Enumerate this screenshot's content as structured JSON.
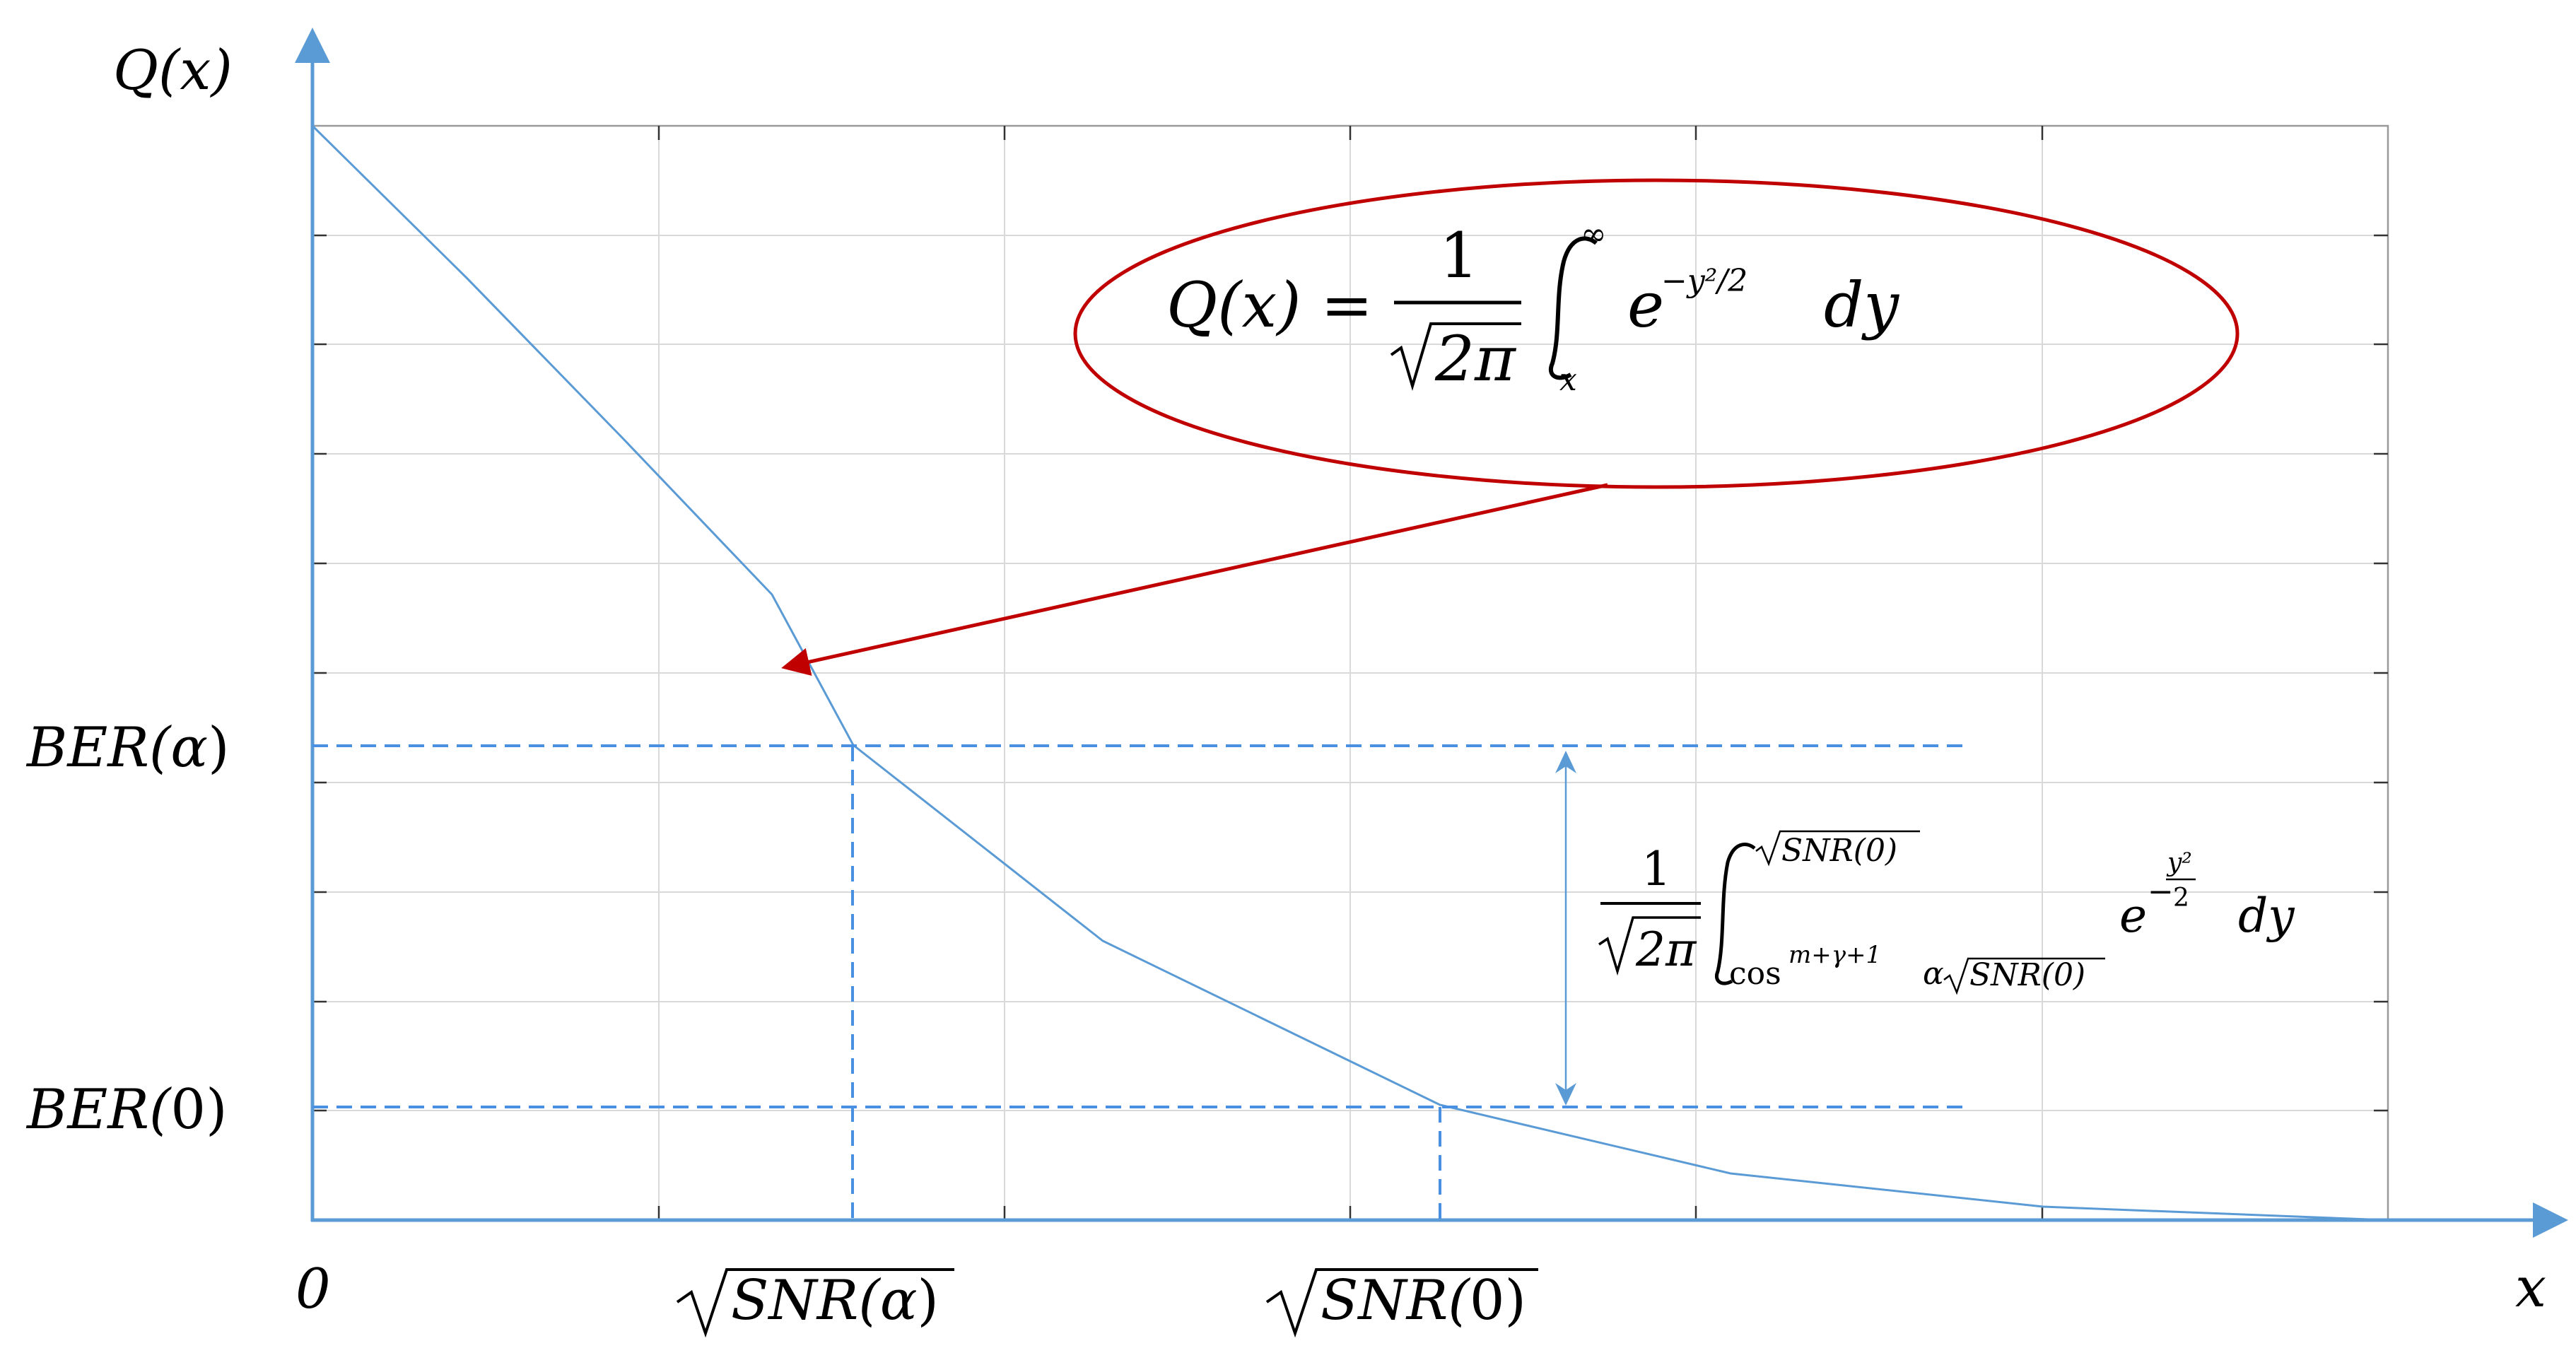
{
  "axes": {
    "y_label": "Q(x)",
    "x_label": "x",
    "origin_label": "0",
    "y_ticks": [
      {
        "label_pre": "BER(",
        "label_arg": "α",
        "label_post": ")"
      },
      {
        "label_pre": "BER(",
        "label_arg": "0",
        "label_post": ")"
      }
    ],
    "x_ticks": [
      {
        "label_pre": "SNR(",
        "label_arg": "α",
        "label_post": ")"
      },
      {
        "label_pre": "SNR(",
        "label_arg": "0",
        "label_post": ")"
      }
    ]
  },
  "formula_q": {
    "lhs": "Q(x) =",
    "numerator": "1",
    "denominator_radicand": "2π",
    "upper_limit": "∞",
    "lower_limit": "x",
    "integrand_base": "e",
    "integrand_exp": "−y²/2",
    "differential": "dy"
  },
  "formula_range": {
    "numerator": "1",
    "denominator_radicand": "2π",
    "upper_limit_radicand": "SNR(0)",
    "lower_limit_cos": "cos",
    "lower_limit_cos_exp": "m+γ+1",
    "lower_limit_alpha": "α",
    "lower_limit_radicand": "SNR(0)",
    "integrand_base": "e",
    "exp_minus": "−",
    "exp_num": "y²",
    "exp_den": "2",
    "differential": "dy"
  },
  "colors": {
    "curve": "#5b9bd5",
    "axis": "#5b9bd5",
    "dashed": "#4a90e2",
    "callout": "#c00000"
  }
}
